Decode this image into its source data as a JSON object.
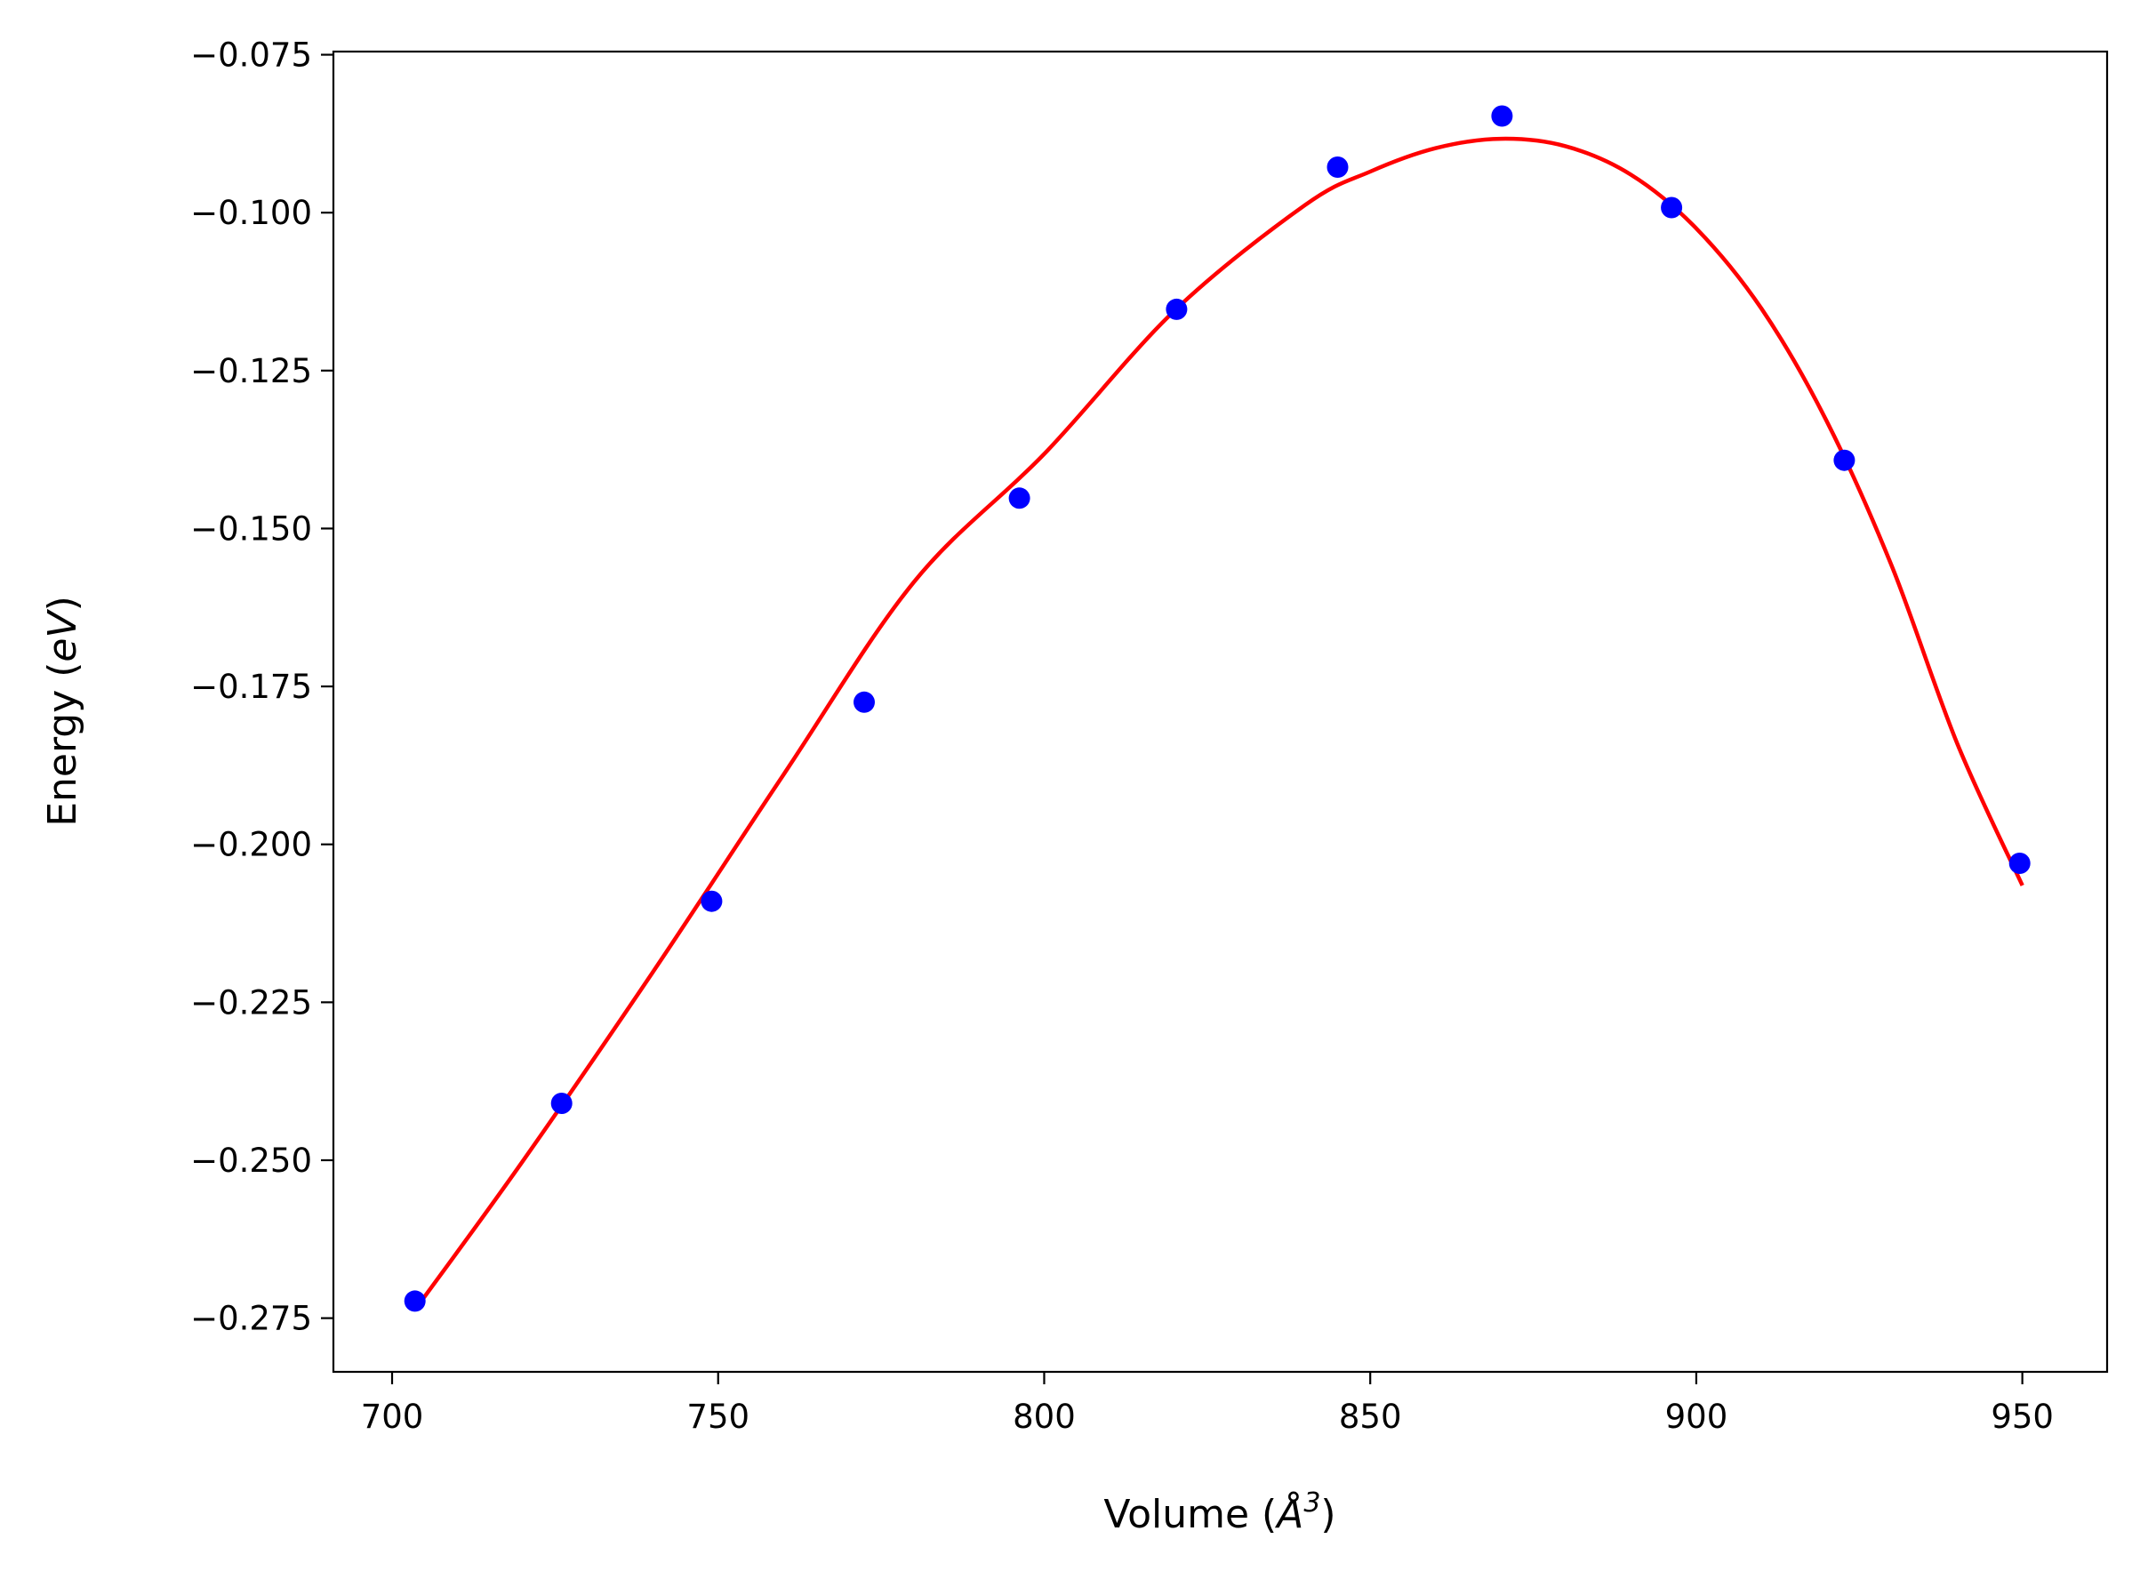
{
  "chart_data": {
    "type": "scatter",
    "xlabel": {
      "prefix": "Volume (",
      "symbol": "Å",
      "sup": "3",
      "suffix": ")"
    },
    "ylabel": {
      "prefix": "Energy (",
      "symbol": "eV",
      "suffix": ")"
    },
    "xlim": [
      691,
      963
    ],
    "ylim": [
      -0.2835,
      -0.0745
    ],
    "x_ticks": [
      700,
      750,
      800,
      850,
      900,
      950
    ],
    "x_tick_labels": [
      "700",
      "750",
      "800",
      "850",
      "900",
      "950"
    ],
    "y_ticks": [
      -0.075,
      -0.1,
      -0.125,
      -0.15,
      -0.175,
      -0.2,
      -0.225,
      -0.25,
      -0.275
    ],
    "y_tick_labels": [
      "−0.075",
      "−0.100",
      "−0.125",
      "−0.150",
      "−0.175",
      "−0.200",
      "−0.225",
      "−0.250",
      "−0.275"
    ],
    "grid": false,
    "series": [
      {
        "kind": "points",
        "color": "#0000ff",
        "x": [
          703.5,
          726.0,
          749.0,
          772.4,
          796.2,
          820.3,
          845.0,
          870.2,
          896.2,
          922.7,
          949.6
        ],
        "y": [
          -0.2723,
          -0.241,
          -0.209,
          -0.1775,
          -0.1452,
          -0.1153,
          -0.0928,
          -0.0847,
          -0.0992,
          -0.1392,
          -0.203
        ]
      },
      {
        "kind": "line",
        "color": "#ff0000",
        "x": [
          704,
          720,
          740,
          760,
          780,
          800,
          820,
          840,
          850,
          860,
          870,
          880,
          890,
          900,
          910,
          920,
          930,
          940,
          950
        ],
        "y": [
          -0.273,
          -0.2502,
          -0.2202,
          -0.189,
          -0.1585,
          -0.1382,
          -0.1155,
          -0.0988,
          -0.0935,
          -0.0898,
          -0.0883,
          -0.0895,
          -0.094,
          -0.1025,
          -0.1152,
          -0.133,
          -0.156,
          -0.184,
          -0.2065
        ]
      }
    ]
  }
}
